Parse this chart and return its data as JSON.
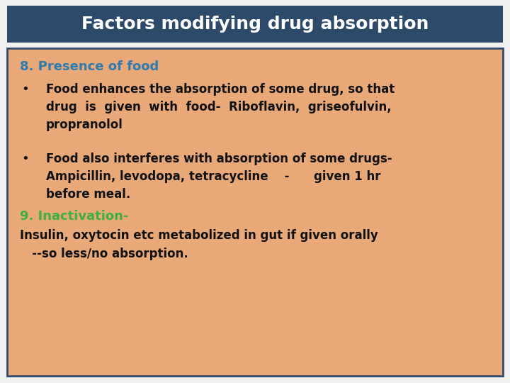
{
  "title": "Factors modifying drug absorption",
  "title_bg_color": "#2E4A6B",
  "title_text_color": "#FFFFFF",
  "title_fontsize": 18,
  "content_bg_color": "#E8A878",
  "content_border_color": "#2E4A6B",
  "outer_bg_color": "#F0F0F0",
  "heading1_color": "#2E7BAD",
  "heading2_color": "#3CB043",
  "body_color": "#111111",
  "heading1": "8. Presence of food",
  "heading1_fontsize": 13,
  "heading2": "9. Inactivation-",
  "heading2_fontsize": 13,
  "bullet1_line1": "Food enhances the absorption of some drug, so that",
  "bullet1_line2": "drug  is  given  with  food-  Riboflavin,  griseofulvin,",
  "bullet1_line3": "propranolol",
  "bullet2_line1": "Food also interferes with absorption of some drugs-",
  "bullet2_line2": "Ampicillin, levodopa, tetracycline    -      given 1 hr",
  "bullet2_line3": "before meal.",
  "last_line1": "Insulin, oxytocin etc metabolized in gut if given orally",
  "last_line2": "   --so less/no absorption.",
  "body_fontsize": 12
}
